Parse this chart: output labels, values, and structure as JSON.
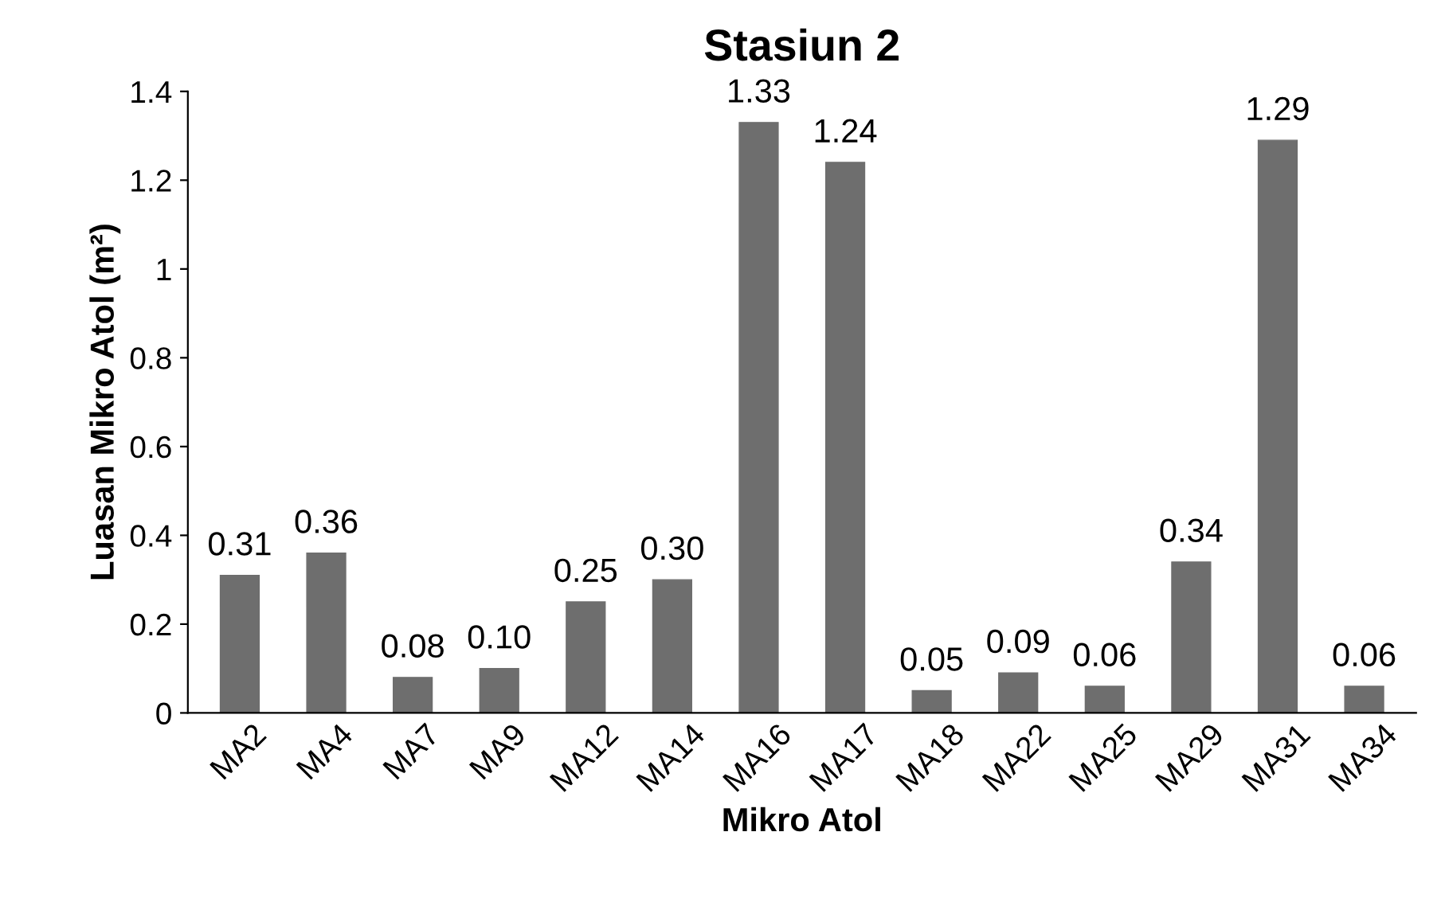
{
  "chart_data": {
    "type": "bar",
    "title": "Stasiun 2",
    "xlabel": "Mikro Atol",
    "ylabel": "Luasan Mikro Atol (m²)",
    "categories": [
      "MA2",
      "MA4",
      "MA7",
      "MA9",
      "MA12",
      "MA14",
      "MA16",
      "MA17",
      "MA18",
      "MA22",
      "MA25",
      "MA29",
      "MA31",
      "MA34"
    ],
    "values": [
      0.31,
      0.36,
      0.08,
      0.1,
      0.25,
      0.3,
      1.33,
      1.24,
      0.05,
      0.09,
      0.06,
      0.34,
      1.29,
      0.06
    ],
    "value_labels": [
      "0.31",
      "0.36",
      "0.08",
      "0.10",
      "0.25",
      "0.30",
      "1.33",
      "1.24",
      "0.05",
      "0.09",
      "0.06",
      "0.34",
      "1.29",
      "0.06"
    ],
    "color": "#6e6e6e",
    "ylim": [
      0,
      1.4
    ],
    "yticks": [
      0,
      {
        "value": 0.2,
        "label": "0.2"
      },
      {
        "value": 0.4,
        "label": "0.4"
      },
      {
        "value": 0.6,
        "label": "0.6"
      },
      {
        "value": 0.8,
        "label": "0.8"
      },
      1,
      {
        "value": 1.2,
        "label": "1.2"
      },
      {
        "value": 1.4,
        "label": "1.4"
      }
    ],
    "grid": false,
    "legend": false
  }
}
